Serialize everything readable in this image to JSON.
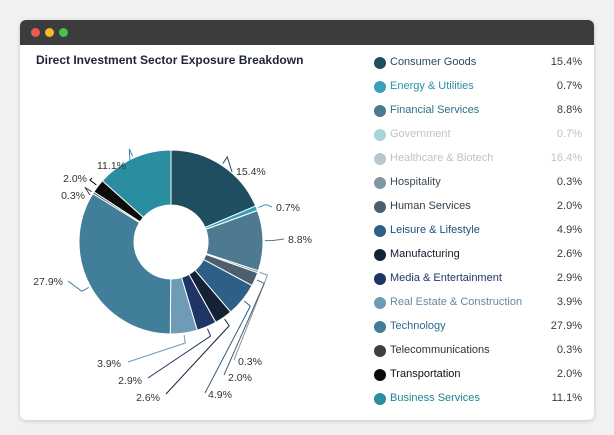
{
  "window": {
    "controls": [
      "close",
      "minimize",
      "maximize"
    ]
  },
  "chart_data": {
    "type": "pie",
    "title": "Direct Investment Sector Exposure Breakdown",
    "variant": "donut",
    "legend_position": "right",
    "slices": [
      {
        "name": "Consumer Goods",
        "value": 15.4,
        "label": "15.4%",
        "color": "#1f4e60",
        "label_color": "#1f4e60",
        "visible": true
      },
      {
        "name": "Energy & Utilities",
        "value": 0.7,
        "label": "0.7%",
        "color": "#3a9fb8",
        "label_color": "#2b8fa8",
        "visible": true
      },
      {
        "name": "Financial Services",
        "value": 8.8,
        "label": "8.8%",
        "color": "#4d7a90",
        "label_color": "#2f6f8c",
        "visible": true
      },
      {
        "name": "Government",
        "value": 0.7,
        "label": "0.7%",
        "color": "#a8d4dc",
        "label_color": "#c2c2c2",
        "visible": false
      },
      {
        "name": "Healthcare & Biotech",
        "value": 16.4,
        "label": "16.4%",
        "color": "#b9c6cd",
        "label_color": "#c2c2c2",
        "visible": false
      },
      {
        "name": "Hospitality",
        "value": 0.3,
        "label": "0.3%",
        "color": "#8096a3",
        "label_color": "#3a4a55",
        "visible": true
      },
      {
        "name": "Human Services",
        "value": 2.0,
        "label": "2.0%",
        "color": "#4d5f6c",
        "label_color": "#2f3e4a",
        "visible": true
      },
      {
        "name": "Leisure & Lifestyle",
        "value": 4.9,
        "label": "4.9%",
        "color": "#2d5f87",
        "label_color": "#1f4f77",
        "visible": true
      },
      {
        "name": "Manufacturing",
        "value": 2.6,
        "label": "2.6%",
        "color": "#142238",
        "label_color": "#111a2a",
        "visible": true
      },
      {
        "name": "Media & Entertainment",
        "value": 2.9,
        "label": "2.9%",
        "color": "#1e3566",
        "label_color": "#1e3566",
        "visible": true
      },
      {
        "name": "Real Estate & Construction",
        "value": 3.9,
        "label": "3.9%",
        "color": "#6e9bb5",
        "label_color": "#5f8ba6",
        "visible": true
      },
      {
        "name": "Technology",
        "value": 27.9,
        "label": "27.9%",
        "color": "#417e99",
        "label_color": "#2c6c88",
        "visible": true
      },
      {
        "name": "Telecommunications",
        "value": 0.3,
        "label": "0.3%",
        "color": "#3f3f3f",
        "label_color": "#333333",
        "visible": true
      },
      {
        "name": "Transportation",
        "value": 2.0,
        "label": "2.0%",
        "color": "#0b0b0b",
        "label_color": "#111111",
        "visible": true
      },
      {
        "name": "Business Services",
        "value": 11.1,
        "label": "11.1%",
        "color": "#2a8ea0",
        "label_color": "#1f8497",
        "visible": true
      }
    ]
  }
}
